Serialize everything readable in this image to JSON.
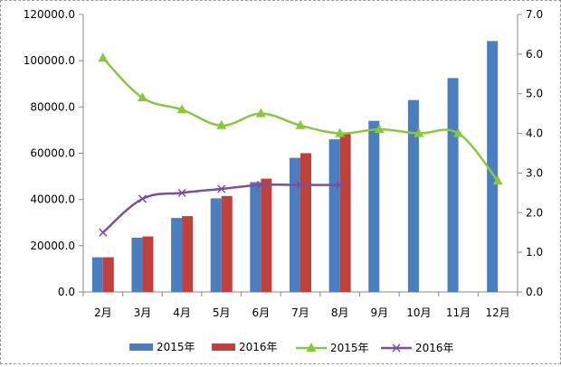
{
  "chart_data": {
    "type": "bar+line",
    "categories": [
      "2月",
      "3月",
      "4月",
      "5月",
      "6月",
      "7月",
      "8月",
      "9月",
      "10月",
      "11月",
      "12月"
    ],
    "bar_series": [
      {
        "name": "2015年",
        "color": "#4a7ebf",
        "values": [
          15000,
          23500,
          32000,
          40500,
          47500,
          58000,
          66000,
          74000,
          83000,
          92500,
          108500
        ]
      },
      {
        "name": "2016年",
        "color": "#c0403c",
        "values": [
          15000,
          24000,
          32800,
          41500,
          49000,
          60000,
          69000,
          null,
          null,
          null,
          null
        ]
      }
    ],
    "line_series": [
      {
        "name": "2015年",
        "color": "#8cc63e",
        "marker": "triangle",
        "values": [
          5.9,
          4.9,
          4.6,
          4.2,
          4.5,
          4.2,
          4.0,
          4.1,
          4.0,
          4.0,
          2.8
        ]
      },
      {
        "name": "2016年",
        "color": "#7a4f9e",
        "marker": "x",
        "values": [
          1.5,
          2.35,
          2.5,
          2.6,
          2.7,
          2.7,
          2.7,
          null,
          null,
          null,
          null
        ]
      }
    ],
    "y_left": {
      "min": 0,
      "max": 120000,
      "step": 20000,
      "tick_labels": [
        "0.0",
        "20000.0",
        "40000.0",
        "60000.0",
        "80000.0",
        "100000.0",
        "120000.0"
      ]
    },
    "y_right": {
      "min": 0,
      "max": 7,
      "step": 1,
      "tick_labels": [
        "0.0",
        "1.0",
        "2.0",
        "3.0",
        "4.0",
        "5.0",
        "6.0",
        "7.0"
      ]
    },
    "legend": [
      {
        "label": "2015年",
        "kind": "bar",
        "color": "#4a7ebf"
      },
      {
        "label": "2016年",
        "kind": "bar",
        "color": "#c0403c"
      },
      {
        "label": "2015年",
        "kind": "line",
        "marker": "triangle",
        "color": "#8cc63e"
      },
      {
        "label": "2016年",
        "kind": "line",
        "marker": "x",
        "color": "#7a4f9e"
      }
    ],
    "legend_position": "bottom",
    "grid": false
  }
}
